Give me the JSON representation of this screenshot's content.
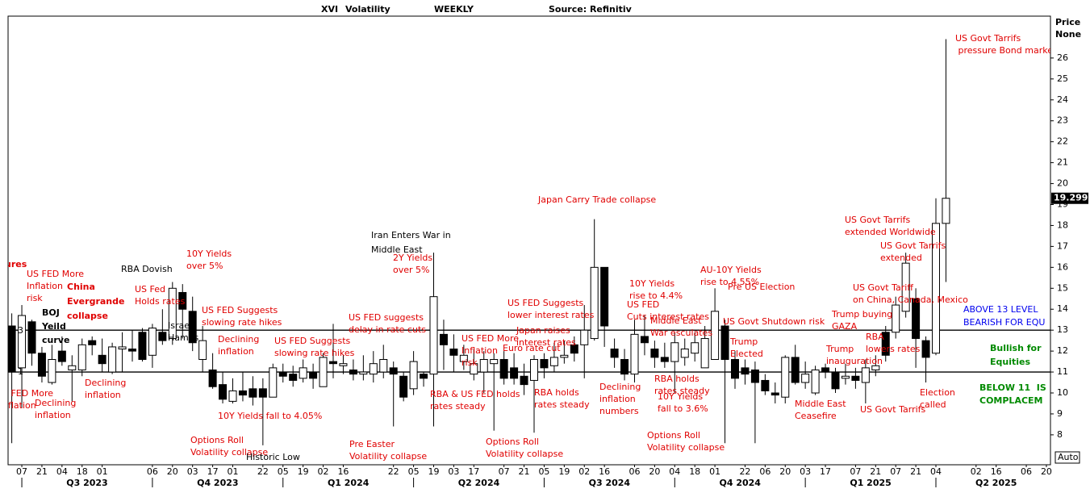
{
  "header": [
    "XVI",
    "Volatility",
    "WEEKLY",
    "Source: Refinitiv"
  ],
  "chart_data": {
    "type": "candlestick",
    "price_axis_title": [
      "Price",
      "None"
    ],
    "scale_mode": "Auto",
    "categories": [
      null,
      "07",
      null,
      "21",
      null,
      "04",
      null,
      "18",
      null,
      "01",
      null,
      null,
      null,
      null,
      "06",
      null,
      "20",
      null,
      "03",
      null,
      "17",
      null,
      "01",
      null,
      null,
      "22",
      null,
      "05",
      null,
      "19",
      null,
      "02",
      null,
      "16",
      null,
      null,
      null,
      null,
      "22",
      null,
      "05",
      null,
      "19",
      null,
      "03",
      null,
      "17",
      null,
      null,
      "07",
      null,
      "21",
      null,
      "05",
      null,
      "19",
      null,
      "02",
      null,
      "16",
      null,
      null,
      "06",
      null,
      "20",
      null,
      "04",
      null,
      "18",
      null,
      "01",
      null,
      null,
      "22",
      null,
      "06",
      null,
      "20",
      null,
      "03",
      null,
      "17",
      null,
      null,
      "07",
      null,
      "21",
      null,
      "07",
      null,
      "21",
      null,
      "04",
      null,
      null,
      null,
      "02",
      null,
      "16",
      null,
      null,
      "06",
      null,
      "20"
    ],
    "quarters": [
      "Q3 2023",
      "Q4 2023",
      "Q1 2024",
      "Q2 2024",
      "Q3 2024",
      "Q4 2024",
      "Q1 2025",
      "Q2 2025"
    ],
    "open": [
      13.2,
      11.2,
      13.4,
      11.9,
      10.5,
      12.0,
      11.1,
      11.1,
      12.5,
      11.8,
      11.0,
      12.1,
      12.1,
      12.9,
      11.8,
      12.9,
      12.6,
      14.8,
      13.9,
      11.6,
      11.1,
      10.4,
      9.6,
      10.1,
      10.2,
      10.2,
      9.8,
      11.0,
      10.9,
      10.7,
      11.0,
      10.3,
      11.5,
      11.3,
      11.1,
      10.9,
      10.9,
      11.0,
      11.2,
      10.8,
      10.2,
      10.9,
      10.9,
      12.8,
      12.1,
      11.5,
      10.9,
      11.0,
      11.4,
      11.6,
      11.2,
      10.8,
      10.6,
      11.6,
      11.3,
      11.7,
      12.3,
      12.3,
      12.6,
      16.0,
      12.1,
      11.6,
      10.9,
      12.7,
      12.1,
      11.7,
      11.5,
      11.7,
      11.9,
      11.2,
      11.6,
      13.2,
      11.6,
      11.2,
      11.1,
      10.6,
      10.0,
      9.8,
      11.7,
      10.5,
      10.0,
      11.2,
      11.0,
      10.7,
      10.8,
      10.5,
      11.1,
      12.9,
      12.9,
      13.9,
      14.5,
      12.5,
      11.9,
      18.1,
      null,
      null,
      null,
      null,
      null,
      null,
      null,
      null,
      null,
      null
    ],
    "high": [
      13.8,
      14.2,
      13.5,
      12.2,
      12.3,
      12.7,
      11.8,
      12.6,
      12.7,
      12.6,
      12.4,
      12.9,
      13.0,
      13.1,
      13.3,
      14.0,
      15.3,
      15.2,
      14.6,
      13.2,
      11.9,
      11.0,
      10.7,
      11.0,
      10.8,
      10.7,
      11.4,
      11.4,
      11.3,
      11.6,
      11.4,
      11.9,
      13.3,
      11.8,
      11.6,
      11.8,
      12.0,
      12.3,
      11.5,
      11.0,
      12.0,
      11.0,
      16.7,
      13.5,
      12.8,
      12.3,
      12.1,
      12.0,
      11.9,
      12.0,
      11.9,
      11.4,
      11.8,
      11.9,
      12.4,
      12.5,
      12.7,
      14.2,
      18.3,
      16.0,
      12.6,
      12.1,
      13.5,
      13.7,
      12.5,
      12.4,
      12.9,
      12.6,
      12.9,
      13.2,
      15.0,
      13.5,
      12.0,
      11.6,
      11.5,
      10.9,
      10.5,
      11.8,
      12.3,
      11.5,
      11.3,
      11.4,
      11.2,
      11.4,
      11.2,
      11.6,
      11.8,
      13.2,
      14.6,
      16.7,
      15.0,
      12.7,
      19.3,
      26.9,
      null,
      null,
      null,
      null,
      null,
      null,
      null,
      null,
      null,
      null
    ],
    "low": [
      7.6,
      9.3,
      11.3,
      10.5,
      10.4,
      11.3,
      9.6,
      10.8,
      11.8,
      11.0,
      10.9,
      11.0,
      11.5,
      11.5,
      11.2,
      12.3,
      12.3,
      12.6,
      12.0,
      11.0,
      10.2,
      9.5,
      9.5,
      9.6,
      9.4,
      7.5,
      9.8,
      10.5,
      10.3,
      10.5,
      10.2,
      10.3,
      10.7,
      10.9,
      10.6,
      10.6,
      10.5,
      10.7,
      8.4,
      9.6,
      9.9,
      10.3,
      8.4,
      11.1,
      11.0,
      11.1,
      10.6,
      10.0,
      8.2,
      10.4,
      10.4,
      9.9,
      8.1,
      10.7,
      11.0,
      11.4,
      11.5,
      10.7,
      12.5,
      12.2,
      11.2,
      10.6,
      10.5,
      11.8,
      11.2,
      11.2,
      10.0,
      11.3,
      11.5,
      11.2,
      11.6,
      7.6,
      10.2,
      10.4,
      7.6,
      9.9,
      9.5,
      9.5,
      10.4,
      10.2,
      9.9,
      10.7,
      10.0,
      10.4,
      10.2,
      9.5,
      10.8,
      11.5,
      12.6,
      13.6,
      11.2,
      10.5,
      11.8,
      15.3,
      null,
      null,
      null,
      null,
      null,
      null,
      null,
      null,
      null,
      null
    ],
    "close": [
      11.0,
      13.7,
      11.9,
      10.8,
      11.6,
      11.5,
      11.3,
      12.3,
      12.3,
      11.4,
      12.2,
      12.2,
      12.0,
      11.6,
      13.1,
      12.5,
      15.0,
      14.0,
      12.4,
      12.5,
      10.3,
      9.7,
      10.1,
      9.9,
      9.8,
      9.8,
      11.2,
      10.8,
      10.6,
      11.2,
      10.7,
      11.7,
      11.4,
      11.4,
      10.9,
      11.0,
      11.4,
      11.6,
      10.9,
      9.8,
      11.5,
      10.7,
      14.6,
      12.3,
      11.8,
      11.8,
      11.4,
      11.6,
      11.6,
      10.7,
      10.7,
      10.4,
      11.6,
      11.2,
      11.7,
      11.8,
      11.9,
      13.0,
      16.0,
      13.2,
      11.7,
      10.9,
      12.8,
      12.4,
      11.7,
      11.5,
      12.4,
      12.1,
      12.4,
      12.6,
      13.9,
      11.6,
      10.7,
      10.9,
      10.5,
      10.1,
      9.9,
      11.7,
      10.5,
      10.9,
      11.1,
      11.0,
      10.2,
      10.8,
      10.6,
      11.2,
      11.3,
      11.8,
      14.2,
      16.2,
      12.6,
      11.7,
      18.1,
      19.299,
      null,
      null,
      null,
      null,
      null,
      null,
      null,
      null,
      null,
      null
    ],
    "up_color": "#ffffff",
    "down_color": "#000000",
    "ylim": [
      6.57,
      28.0
    ],
    "yticks": [
      8,
      9,
      10,
      11,
      12,
      13,
      14,
      15,
      16,
      17,
      18,
      19,
      20,
      21,
      22,
      23,
      24,
      25,
      26
    ],
    "reference_lines": [
      13,
      11
    ],
    "annotations": [
      {
        "text": [
          "ures"
        ],
        "color": "#e00000"
      },
      {
        "text": [
          "US FED More",
          "Inflation",
          "risk"
        ],
        "color": "#e00000"
      },
      {
        "text": [
          "China",
          "Evergrande",
          "collapse"
        ],
        "color": "#e00000"
      },
      {
        "text": [
          "BOJ",
          "Yeild",
          "curve"
        ],
        "color": "#000000"
      },
      {
        "text": [
          "RBA Dovish"
        ],
        "color": "#000000"
      },
      {
        "text": [
          "US Fed",
          "Holds rates"
        ],
        "color": "#e00000"
      },
      {
        "text": [
          "10Y Yields",
          "over 5%"
        ],
        "color": "#e00000"
      },
      {
        "text": [
          "Israel",
          "Hamas"
        ],
        "color": "#000000"
      },
      {
        "text": [
          "US FED Suggests",
          "slowing rate hikes"
        ],
        "color": "#e00000"
      },
      {
        "text": [
          "Declining",
          "inflation"
        ],
        "color": "#e00000"
      },
      {
        "text": [
          "Declining",
          "inflation"
        ],
        "color": "#e00000"
      },
      {
        "text": [
          "S FED More",
          "nflation",
          "k"
        ],
        "color": "#e00000"
      },
      {
        "text": [
          "Declining",
          "inflation"
        ],
        "color": "#e00000"
      },
      {
        "text": [
          "10Y Yields fall to 4.05%"
        ],
        "color": "#e00000"
      },
      {
        "text": [
          "Options Roll",
          "Volatility collapse"
        ],
        "color": "#e00000"
      },
      {
        "text": [
          "Historic Low"
        ],
        "color": "#000000"
      },
      {
        "text": [
          "US FED Suggests",
          "slowing rate hikes"
        ],
        "color": "#e00000"
      },
      {
        "text": [
          "US FED suggests",
          "delay in rate cuts"
        ],
        "color": "#e00000"
      },
      {
        "text": [
          "Iran Enters War in",
          "Middle East"
        ],
        "color": "#000000"
      },
      {
        "text": [
          "2Y Yields",
          "over 5%"
        ],
        "color": "#e00000"
      },
      {
        "text": [
          "Pre Easter",
          "Volatility collapse"
        ],
        "color": "#e00000"
      },
      {
        "text": [
          "RBA & US FED holds",
          "rates steady"
        ],
        "color": "#e00000"
      },
      {
        "text": [
          "US FED More",
          "Inflation",
          "risk"
        ],
        "color": "#e00000"
      },
      {
        "text": [
          "Options Roll",
          "Volatility collapse"
        ],
        "color": "#e00000"
      },
      {
        "text": [
          "Euro rate cut"
        ],
        "color": "#e00000"
      },
      {
        "text": [
          "Japan raises",
          "interest rates"
        ],
        "color": "#e00000"
      },
      {
        "text": [
          "US FED Suggests",
          "lower interest rates"
        ],
        "color": "#e00000"
      },
      {
        "text": [
          "RBA holds",
          "rates steady"
        ],
        "color": "#e00000"
      },
      {
        "text": [
          "Japan Carry Trade collapse"
        ],
        "color": "#e00000"
      },
      {
        "text": [
          "Declining",
          "inflation",
          "numbers"
        ],
        "color": "#e00000"
      },
      {
        "text": [
          "10Y Yields",
          "rise to 4.4%"
        ],
        "color": "#e00000"
      },
      {
        "text": [
          "US FED",
          "Cuts interest rates"
        ],
        "color": "#e00000"
      },
      {
        "text": [
          "Middle East",
          "War esculates"
        ],
        "color": "#e00000"
      },
      {
        "text": [
          "RBA holds",
          "rates steady"
        ],
        "color": "#e00000"
      },
      {
        "text": [
          "10Y Yields",
          "fall to 3.6%"
        ],
        "color": "#e00000"
      },
      {
        "text": [
          "Options Roll",
          "Volatility collapse"
        ],
        "color": "#e00000"
      },
      {
        "text": [
          "AU-10Y Yields",
          "rise to 4.55%"
        ],
        "color": "#e00000"
      },
      {
        "text": [
          "Pre US Election"
        ],
        "color": "#e00000"
      },
      {
        "text": [
          "US Govt Shutdown risk"
        ],
        "color": "#e00000"
      },
      {
        "text": [
          "Trump",
          "Elected"
        ],
        "color": "#e00000"
      },
      {
        "text": [
          "Middle East",
          "Ceasefire"
        ],
        "color": "#e00000"
      },
      {
        "text": [
          "Trump",
          "inauguration"
        ],
        "color": "#e00000"
      },
      {
        "text": [
          "Trump buying",
          "GAZA"
        ],
        "color": "#e00000"
      },
      {
        "text": [
          "US Govt Tariff",
          "on China, Canada, Mexico"
        ],
        "color": "#e00000"
      },
      {
        "text": [
          "RBA",
          "lowers rates"
        ],
        "color": "#e00000"
      },
      {
        "text": [
          "US Govt Tarrifs"
        ],
        "color": "#e00000"
      },
      {
        "text": [
          "Election",
          "called"
        ],
        "color": "#e00000"
      },
      {
        "text": [
          "US Govt Tarrifs",
          "extended Worldwide"
        ],
        "color": "#e00000"
      },
      {
        "text": [
          "US Govt Tarrifs",
          "extended"
        ],
        "color": "#e00000"
      },
      {
        "text": [
          "US Govt Tarrifs",
          " pressure Bond market"
        ],
        "color": "#e00000"
      },
      {
        "text": [
          "ABOVE 13 LEVEL",
          "BEARISH FOR EQU"
        ],
        "color": "#0000ee"
      },
      {
        "text": [
          "Bullish for",
          "Equities"
        ],
        "color": "#008a00"
      },
      {
        "text": [
          "BELOW 11  IS",
          "COMPLACEM"
        ],
        "color": "#008a00"
      },
      {
        "text": [
          "3"
        ],
        "color": "#000000"
      },
      {
        "text": [
          "1"
        ],
        "color": "#000000"
      }
    ]
  }
}
